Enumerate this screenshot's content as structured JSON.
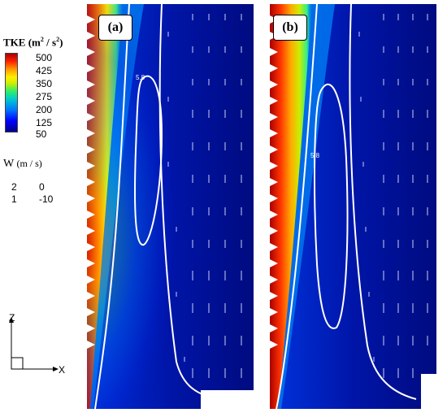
{
  "legend": {
    "tke_title": "TKE",
    "tke_unit_base": "(m",
    "tke_unit_sup1": "2",
    "tke_unit_mid": " / s",
    "tke_unit_sup2": "2",
    "tke_unit_end": ")",
    "tke_ticks": [
      "500",
      "425",
      "350",
      "275",
      "200",
      "125",
      "50"
    ],
    "colorbar_colors": [
      "#00008b",
      "#0000ff",
      "#0077ff",
      "#00cccc",
      "#33ee66",
      "#ccee00",
      "#ffee00",
      "#ff9900",
      "#ff2200",
      "#aa0000"
    ]
  },
  "w_legend": {
    "title": "W",
    "unit": "(m / s)",
    "levels": [
      [
        "2",
        "0"
      ],
      [
        "1",
        "-10"
      ]
    ]
  },
  "axes": {
    "z": "Z",
    "x": "X"
  },
  "panels": [
    {
      "id": "a",
      "label": "(a)",
      "contour_label": "5.8"
    },
    {
      "id": "b",
      "label": "(b)",
      "contour_label": "5.8"
    }
  ]
}
